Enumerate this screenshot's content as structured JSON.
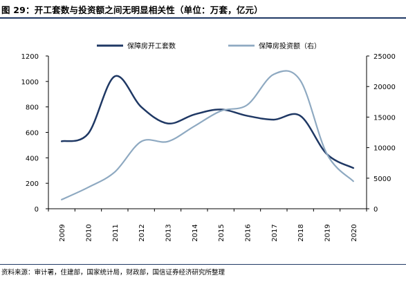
{
  "header": {
    "title": "图 29：开工套数与投资额之间无明显相关性（单位：万套，亿元）"
  },
  "footer": {
    "source": "资料来源：审计署，住建部，国家统计局，财政部，国信证券经济研究所整理"
  },
  "colors": {
    "series1": "#1f3864",
    "series2": "#8ea9c1",
    "rule": "#1f3864"
  },
  "chart_data": {
    "type": "line",
    "x": [
      "2009",
      "2010",
      "2011",
      "2012",
      "2013",
      "2014",
      "2015",
      "2016",
      "2017",
      "2018",
      "2019",
      "2020"
    ],
    "series": [
      {
        "name": "保障房开工套数",
        "axis": "left",
        "values": [
          530,
          590,
          1040,
          800,
          670,
          740,
          780,
          730,
          700,
          730,
          430,
          320
        ]
      },
      {
        "name": "保障房投资额（右）",
        "axis": "right",
        "values": [
          1500,
          3500,
          6000,
          11000,
          11000,
          13500,
          16000,
          17000,
          22000,
          21000,
          9000,
          4500
        ]
      }
    ],
    "ylim_left": [
      0,
      1200
    ],
    "yticks_left": [
      "0",
      "200",
      "400",
      "600",
      "800",
      "1000",
      "1200"
    ],
    "ylim_right": [
      0,
      25000
    ],
    "yticks_right": [
      "0",
      "5000",
      "10000",
      "15000",
      "20000",
      "25000"
    ],
    "legend_position": "top",
    "grid": false
  }
}
